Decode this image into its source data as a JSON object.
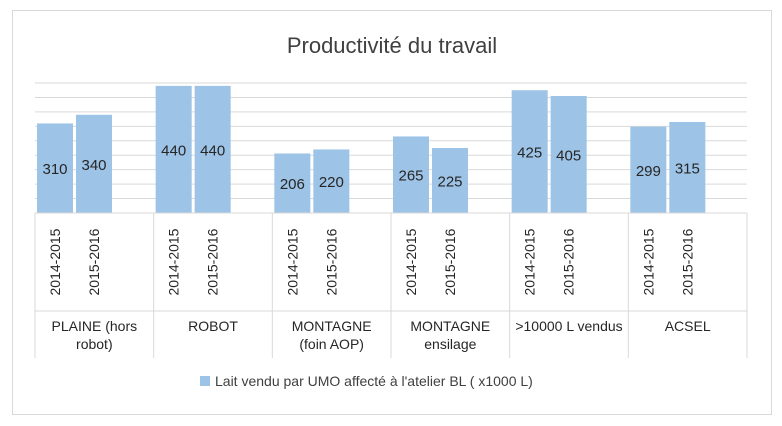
{
  "chart_data": {
    "type": "bar",
    "title": "Productivité du travail",
    "xlabel": "",
    "ylabel": "",
    "ylim": [
      0,
      450
    ],
    "grid": true,
    "legend_position": "bottom",
    "groups": [
      {
        "label_lines": [
          "PLAINE  (hors",
          "robot)"
        ],
        "sub": [
          "2014-2015",
          "2015-2016"
        ],
        "values": [
          310,
          340
        ]
      },
      {
        "label_lines": [
          "ROBOT"
        ],
        "sub": [
          "2014-2015",
          "2015-2016"
        ],
        "values": [
          440,
          440
        ]
      },
      {
        "label_lines": [
          "MONTAGNE",
          "(foin AOP)"
        ],
        "sub": [
          "2014-2015",
          "2015-2016"
        ],
        "values": [
          206,
          220
        ]
      },
      {
        "label_lines": [
          "MONTAGNE",
          "ensilage"
        ],
        "sub": [
          "2014-2015",
          "2015-2016"
        ],
        "values": [
          265,
          225
        ]
      },
      {
        "label_lines": [
          ">10000 L vendus"
        ],
        "sub": [
          "2014-2015",
          "2015-2016"
        ],
        "values": [
          425,
          405
        ]
      },
      {
        "label_lines": [
          "ACSEL"
        ],
        "sub": [
          "2014-2015",
          "2015-2016"
        ],
        "values": [
          299,
          315
        ]
      }
    ],
    "series": [
      {
        "name": "Lait vendu par UMO affecté à l'atelier BL ( x1000 L)",
        "color": "#9dc3e6"
      }
    ],
    "colors": {
      "grid": "#d9d9d9",
      "text": "#262626",
      "title": "#404040"
    }
  }
}
